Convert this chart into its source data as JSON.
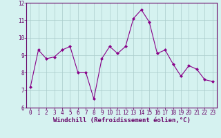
{
  "x": [
    0,
    1,
    2,
    3,
    4,
    5,
    6,
    7,
    8,
    9,
    10,
    11,
    12,
    13,
    14,
    15,
    16,
    17,
    18,
    19,
    20,
    21,
    22,
    23
  ],
  "y": [
    7.2,
    9.3,
    8.8,
    8.9,
    9.3,
    9.5,
    8.0,
    8.0,
    6.5,
    8.8,
    9.5,
    9.1,
    9.5,
    11.1,
    11.6,
    10.9,
    9.1,
    9.3,
    8.5,
    7.8,
    8.4,
    8.2,
    7.6,
    7.5
  ],
  "line_color": "#880088",
  "marker": "D",
  "marker_size": 2.0,
  "xlabel": "Windchill (Refroidissement éolien,°C)",
  "xlim": [
    -0.5,
    23.5
  ],
  "ylim": [
    6,
    12
  ],
  "yticks": [
    6,
    7,
    8,
    9,
    10,
    11,
    12
  ],
  "xticks": [
    0,
    1,
    2,
    3,
    4,
    5,
    6,
    7,
    8,
    9,
    10,
    11,
    12,
    13,
    14,
    15,
    16,
    17,
    18,
    19,
    20,
    21,
    22,
    23
  ],
  "bg_color": "#d5f2f0",
  "grid_color": "#aacccc",
  "label_color": "#660066",
  "tick_fontsize": 5.5,
  "xlabel_fontsize": 6.5
}
